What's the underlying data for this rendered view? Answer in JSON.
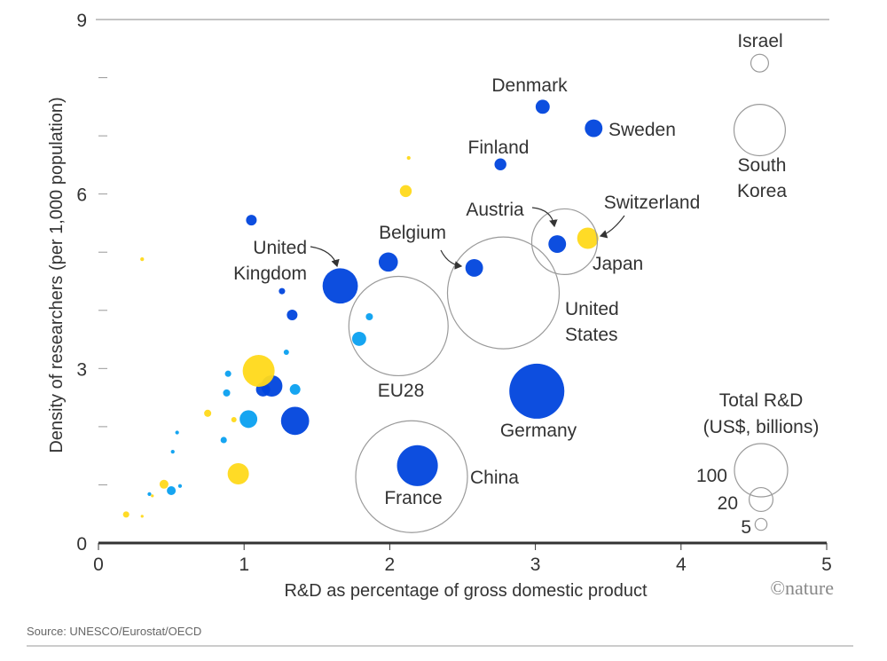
{
  "chart_data": {
    "type": "scatter",
    "xlabel": "R&D as percentage of gross domestic product",
    "ylabel": "Density of researchers (per 1,000 population)",
    "xlim": [
      0,
      5
    ],
    "ylim": [
      0,
      9
    ],
    "x_ticks": [
      "0",
      "1",
      "2",
      "3",
      "4",
      "5"
    ],
    "y_ticks": [
      "0",
      "3",
      "6",
      "9"
    ],
    "size_encoding": "Total R&D (US$, billions)",
    "legend": {
      "title_lines": [
        "Total R&D",
        "(US$, billions)"
      ],
      "sizes": [
        100,
        20,
        5
      ],
      "size_labels": [
        "100",
        "20",
        "5"
      ],
      "placement": "bottom-right"
    },
    "colors": {
      "blue": "#0044dd",
      "light_blue": "#0aa0f0",
      "yellow": "#ffd91a",
      "outline": "#9a9a9a"
    },
    "points": [
      {
        "label": [
          "Denmark"
        ],
        "x": 3.05,
        "y": 7.5,
        "size": 7,
        "color": "blue"
      },
      {
        "label": [
          "Sweden"
        ],
        "x": 3.4,
        "y": 7.13,
        "size": 11,
        "color": "blue"
      },
      {
        "label": [
          "Finland"
        ],
        "x": 2.76,
        "y": 6.51,
        "size": 5,
        "color": "blue"
      },
      {
        "label": [
          "Austria"
        ],
        "x": 3.15,
        "y": 5.14,
        "size": 11,
        "color": "blue"
      },
      {
        "label": [
          "Belgium"
        ],
        "x": 2.58,
        "y": 4.73,
        "size": 11,
        "color": "blue"
      },
      {
        "x": 1.99,
        "y": 4.83,
        "size": 13,
        "color": "blue"
      },
      {
        "label": [
          "United",
          "Kingdom"
        ],
        "x": 1.66,
        "y": 4.42,
        "size": 44,
        "color": "blue"
      },
      {
        "x": 1.05,
        "y": 5.55,
        "size": 4,
        "color": "blue"
      },
      {
        "x": 1.26,
        "y": 4.33,
        "size": 1.4,
        "color": "blue"
      },
      {
        "x": 1.33,
        "y": 3.92,
        "size": 4,
        "color": "blue"
      },
      {
        "label": [
          "Germany"
        ],
        "x": 3.01,
        "y": 2.61,
        "size": 107,
        "color": "blue"
      },
      {
        "label": [
          "France"
        ],
        "x": 2.19,
        "y": 1.33,
        "size": 59,
        "color": "blue"
      },
      {
        "x": 1.19,
        "y": 2.7,
        "size": 16,
        "color": "blue"
      },
      {
        "x": 1.13,
        "y": 2.64,
        "size": 7,
        "color": "blue"
      },
      {
        "x": 1.35,
        "y": 2.1,
        "size": 28,
        "color": "blue"
      },
      {
        "x": 1.86,
        "y": 3.89,
        "size": 1.8,
        "color": "light_blue"
      },
      {
        "x": 1.79,
        "y": 3.51,
        "size": 7,
        "color": "light_blue"
      },
      {
        "x": 1.29,
        "y": 3.28,
        "size": 1,
        "color": "light_blue"
      },
      {
        "x": 1.35,
        "y": 2.64,
        "size": 4,
        "color": "light_blue"
      },
      {
        "x": 1.03,
        "y": 2.13,
        "size": 11,
        "color": "light_blue"
      },
      {
        "x": 0.89,
        "y": 2.91,
        "size": 1.4,
        "color": "light_blue"
      },
      {
        "x": 0.88,
        "y": 2.58,
        "size": 1.8,
        "color": "light_blue"
      },
      {
        "x": 0.86,
        "y": 1.77,
        "size": 1.4,
        "color": "light_blue"
      },
      {
        "x": 0.54,
        "y": 1.9,
        "size": 0.5,
        "color": "light_blue"
      },
      {
        "x": 0.51,
        "y": 1.57,
        "size": 0.5,
        "color": "light_blue"
      },
      {
        "x": 0.5,
        "y": 0.9,
        "size": 2.8,
        "color": "light_blue"
      },
      {
        "x": 0.56,
        "y": 0.98,
        "size": 0.5,
        "color": "light_blue"
      },
      {
        "x": 0.35,
        "y": 0.84,
        "size": 0.5,
        "color": "light_blue"
      },
      {
        "label": [
          "Switzerland"
        ],
        "x": 3.36,
        "y": 5.24,
        "size": 16,
        "color": "yellow"
      },
      {
        "x": 2.11,
        "y": 6.05,
        "size": 5,
        "color": "yellow"
      },
      {
        "x": 2.13,
        "y": 6.62,
        "size": 0.5,
        "color": "yellow"
      },
      {
        "x": 1.1,
        "y": 2.96,
        "size": 36,
        "color": "yellow"
      },
      {
        "x": 0.96,
        "y": 1.19,
        "size": 16,
        "color": "yellow"
      },
      {
        "x": 0.75,
        "y": 2.23,
        "size": 1.8,
        "color": "yellow"
      },
      {
        "x": 0.93,
        "y": 2.12,
        "size": 1,
        "color": "yellow"
      },
      {
        "x": 0.45,
        "y": 1.01,
        "size": 2.8,
        "color": "yellow"
      },
      {
        "x": 0.37,
        "y": 0.81,
        "size": 0.3,
        "color": "yellow"
      },
      {
        "x": 0.3,
        "y": 4.88,
        "size": 0.5,
        "color": "yellow"
      },
      {
        "x": 0.19,
        "y": 0.49,
        "size": 1.4,
        "color": "yellow"
      },
      {
        "x": 0.3,
        "y": 0.46,
        "size": 0.3,
        "color": "yellow"
      },
      {
        "label": [
          "Israel"
        ],
        "x": 4.54,
        "y": 8.25,
        "size": 11,
        "color": "outline"
      },
      {
        "label": [
          "South",
          "Korea"
        ],
        "x": 4.54,
        "y": 7.1,
        "size": 93,
        "color": "outline"
      },
      {
        "label": [
          "Japan"
        ],
        "x": 3.2,
        "y": 5.18,
        "size": 152,
        "color": "outline"
      },
      {
        "label": [
          "United",
          "States"
        ],
        "x": 2.78,
        "y": 4.3,
        "size": 441,
        "color": "outline"
      },
      {
        "label": [
          "EU28"
        ],
        "x": 2.06,
        "y": 3.73,
        "size": 348,
        "color": "outline"
      },
      {
        "label": [
          "China"
        ],
        "x": 2.15,
        "y": 1.14,
        "size": 441,
        "color": "outline"
      }
    ]
  },
  "source": "Source: UNESCO/Eurostat/OECD",
  "logo": "©nature"
}
